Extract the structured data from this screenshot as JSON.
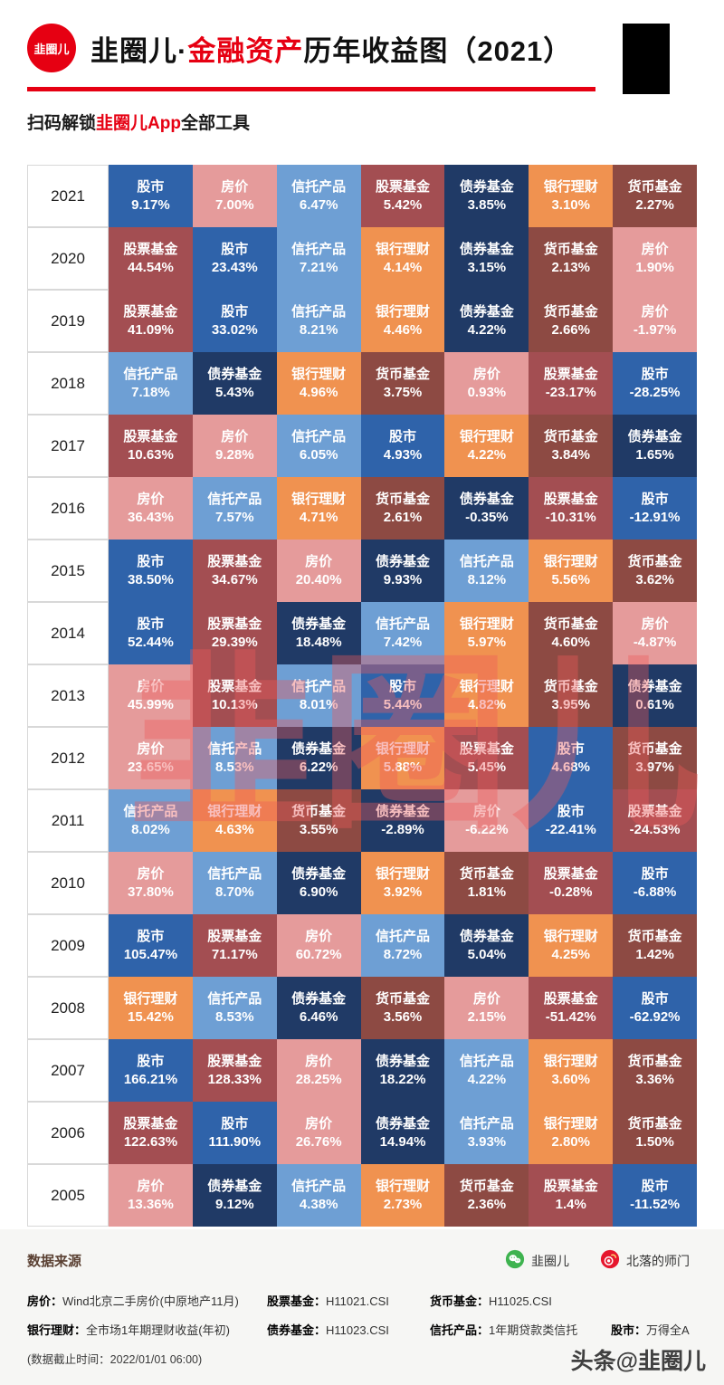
{
  "colors": {
    "accent": "#e60012",
    "watermark_red": "#ee5a5a"
  },
  "header": {
    "logo_text": "韭圈儿",
    "title_prefix": "韭圈儿·",
    "title_highlight": "金融资产",
    "title_suffix": "历年收益图（2021）",
    "subtitle_prefix": "扫码解锁",
    "subtitle_highlight": "韭圈儿App",
    "subtitle_suffix": "全部工具"
  },
  "watermark": {
    "text": "韭圈儿"
  },
  "chart_data": {
    "type": "table",
    "title": "韭圈儿·金融资产历年收益图（2021）",
    "assets": [
      "股市",
      "房价",
      "信托产品",
      "股票基金",
      "债券基金",
      "银行理财",
      "货币基金"
    ],
    "asset_colors": {
      "股市": "#2f63aa",
      "房价": "#e59b9b",
      "信托产品": "#6e9fd4",
      "股票基金": "#a34e52",
      "债券基金": "#203a66",
      "银行理财": "#f09250",
      "货币基金": "#8d4a43"
    },
    "rows": [
      {
        "year": "2021",
        "cells": [
          {
            "name": "股市",
            "value": "9.17%"
          },
          {
            "name": "房价",
            "value": "7.00%"
          },
          {
            "name": "信托产品",
            "value": "6.47%"
          },
          {
            "name": "股票基金",
            "value": "5.42%"
          },
          {
            "name": "债券基金",
            "value": "3.85%"
          },
          {
            "name": "银行理财",
            "value": "3.10%"
          },
          {
            "name": "货币基金",
            "value": "2.27%"
          }
        ]
      },
      {
        "year": "2020",
        "cells": [
          {
            "name": "股票基金",
            "value": "44.54%"
          },
          {
            "name": "股市",
            "value": "23.43%"
          },
          {
            "name": "信托产品",
            "value": "7.21%"
          },
          {
            "name": "银行理财",
            "value": "4.14%"
          },
          {
            "name": "债券基金",
            "value": "3.15%"
          },
          {
            "name": "货币基金",
            "value": "2.13%"
          },
          {
            "name": "房价",
            "value": "1.90%"
          }
        ]
      },
      {
        "year": "2019",
        "cells": [
          {
            "name": "股票基金",
            "value": "41.09%"
          },
          {
            "name": "股市",
            "value": "33.02%"
          },
          {
            "name": "信托产品",
            "value": "8.21%"
          },
          {
            "name": "银行理财",
            "value": "4.46%"
          },
          {
            "name": "债券基金",
            "value": "4.22%"
          },
          {
            "name": "货币基金",
            "value": "2.66%"
          },
          {
            "name": "房价",
            "value": "-1.97%"
          }
        ]
      },
      {
        "year": "2018",
        "cells": [
          {
            "name": "信托产品",
            "value": "7.18%"
          },
          {
            "name": "债券基金",
            "value": "5.43%"
          },
          {
            "name": "银行理财",
            "value": "4.96%"
          },
          {
            "name": "货币基金",
            "value": "3.75%"
          },
          {
            "name": "房价",
            "value": "0.93%"
          },
          {
            "name": "股票基金",
            "value": "-23.17%"
          },
          {
            "name": "股市",
            "value": "-28.25%"
          }
        ]
      },
      {
        "year": "2017",
        "cells": [
          {
            "name": "股票基金",
            "value": "10.63%"
          },
          {
            "name": "房价",
            "value": "9.28%"
          },
          {
            "name": "信托产品",
            "value": "6.05%"
          },
          {
            "name": "股市",
            "value": "4.93%"
          },
          {
            "name": "银行理财",
            "value": "4.22%"
          },
          {
            "name": "货币基金",
            "value": "3.84%"
          },
          {
            "name": "债券基金",
            "value": "1.65%"
          }
        ]
      },
      {
        "year": "2016",
        "cells": [
          {
            "name": "房价",
            "value": "36.43%"
          },
          {
            "name": "信托产品",
            "value": "7.57%"
          },
          {
            "name": "银行理财",
            "value": "4.71%"
          },
          {
            "name": "货币基金",
            "value": "2.61%"
          },
          {
            "name": "债券基金",
            "value": "-0.35%"
          },
          {
            "name": "股票基金",
            "value": "-10.31%"
          },
          {
            "name": "股市",
            "value": "-12.91%"
          }
        ]
      },
      {
        "year": "2015",
        "cells": [
          {
            "name": "股市",
            "value": "38.50%"
          },
          {
            "name": "股票基金",
            "value": "34.67%"
          },
          {
            "name": "房价",
            "value": "20.40%"
          },
          {
            "name": "债券基金",
            "value": "9.93%"
          },
          {
            "name": "信托产品",
            "value": "8.12%"
          },
          {
            "name": "银行理财",
            "value": "5.56%"
          },
          {
            "name": "货币基金",
            "value": "3.62%"
          }
        ]
      },
      {
        "year": "2014",
        "cells": [
          {
            "name": "股市",
            "value": "52.44%"
          },
          {
            "name": "股票基金",
            "value": "29.39%"
          },
          {
            "name": "债券基金",
            "value": "18.48%"
          },
          {
            "name": "信托产品",
            "value": "7.42%"
          },
          {
            "name": "银行理财",
            "value": "5.97%"
          },
          {
            "name": "货币基金",
            "value": "4.60%"
          },
          {
            "name": "房价",
            "value": "-4.87%"
          }
        ]
      },
      {
        "year": "2013",
        "cells": [
          {
            "name": "房价",
            "value": "45.99%"
          },
          {
            "name": "股票基金",
            "value": "10.13%"
          },
          {
            "name": "信托产品",
            "value": "8.01%"
          },
          {
            "name": "股市",
            "value": "5.44%"
          },
          {
            "name": "银行理财",
            "value": "4.82%"
          },
          {
            "name": "货币基金",
            "value": "3.95%"
          },
          {
            "name": "债券基金",
            "value": "0.61%"
          }
        ]
      },
      {
        "year": "2012",
        "cells": [
          {
            "name": "房价",
            "value": "23.65%"
          },
          {
            "name": "信托产品",
            "value": "8.53%"
          },
          {
            "name": "债券基金",
            "value": "6.22%"
          },
          {
            "name": "银行理财",
            "value": "5.88%"
          },
          {
            "name": "股票基金",
            "value": "5.45%"
          },
          {
            "name": "股市",
            "value": "4.68%"
          },
          {
            "name": "货币基金",
            "value": "3.97%"
          }
        ]
      },
      {
        "year": "2011",
        "cells": [
          {
            "name": "信托产品",
            "value": "8.02%"
          },
          {
            "name": "银行理财",
            "value": "4.63%"
          },
          {
            "name": "货币基金",
            "value": "3.55%"
          },
          {
            "name": "债券基金",
            "value": "-2.89%"
          },
          {
            "name": "房价",
            "value": "-6.22%"
          },
          {
            "name": "股市",
            "value": "-22.41%"
          },
          {
            "name": "股票基金",
            "value": "-24.53%"
          }
        ]
      },
      {
        "year": "2010",
        "cells": [
          {
            "name": "房价",
            "value": "37.80%"
          },
          {
            "name": "信托产品",
            "value": "8.70%"
          },
          {
            "name": "债券基金",
            "value": "6.90%"
          },
          {
            "name": "银行理财",
            "value": "3.92%"
          },
          {
            "name": "货币基金",
            "value": "1.81%"
          },
          {
            "name": "股票基金",
            "value": "-0.28%"
          },
          {
            "name": "股市",
            "value": "-6.88%"
          }
        ]
      },
      {
        "year": "2009",
        "cells": [
          {
            "name": "股市",
            "value": "105.47%"
          },
          {
            "name": "股票基金",
            "value": "71.17%"
          },
          {
            "name": "房价",
            "value": "60.72%"
          },
          {
            "name": "信托产品",
            "value": "8.72%"
          },
          {
            "name": "债券基金",
            "value": "5.04%"
          },
          {
            "name": "银行理财",
            "value": "4.25%"
          },
          {
            "name": "货币基金",
            "value": "1.42%"
          }
        ]
      },
      {
        "year": "2008",
        "cells": [
          {
            "name": "银行理财",
            "value": "15.42%"
          },
          {
            "name": "信托产品",
            "value": "8.53%"
          },
          {
            "name": "债券基金",
            "value": "6.46%"
          },
          {
            "name": "货币基金",
            "value": "3.56%"
          },
          {
            "name": "房价",
            "value": "2.15%"
          },
          {
            "name": "股票基金",
            "value": "-51.42%"
          },
          {
            "name": "股市",
            "value": "-62.92%"
          }
        ]
      },
      {
        "year": "2007",
        "cells": [
          {
            "name": "股市",
            "value": "166.21%"
          },
          {
            "name": "股票基金",
            "value": "128.33%"
          },
          {
            "name": "房价",
            "value": "28.25%"
          },
          {
            "name": "债券基金",
            "value": "18.22%"
          },
          {
            "name": "信托产品",
            "value": "4.22%"
          },
          {
            "name": "银行理财",
            "value": "3.60%"
          },
          {
            "name": "货币基金",
            "value": "3.36%"
          }
        ]
      },
      {
        "year": "2006",
        "cells": [
          {
            "name": "股票基金",
            "value": "122.63%"
          },
          {
            "name": "股市",
            "value": "111.90%"
          },
          {
            "name": "房价",
            "value": "26.76%"
          },
          {
            "name": "债券基金",
            "value": "14.94%"
          },
          {
            "name": "信托产品",
            "value": "3.93%"
          },
          {
            "name": "银行理财",
            "value": "2.80%"
          },
          {
            "name": "货币基金",
            "value": "1.50%"
          }
        ]
      },
      {
        "year": "2005",
        "cells": [
          {
            "name": "房价",
            "value": "13.36%"
          },
          {
            "name": "债券基金",
            "value": "9.12%"
          },
          {
            "name": "信托产品",
            "value": "4.38%"
          },
          {
            "name": "银行理财",
            "value": "2.73%"
          },
          {
            "name": "货币基金",
            "value": "2.36%"
          },
          {
            "name": "股票基金",
            "value": "1.4%"
          },
          {
            "name": "股市",
            "value": "-11.52%"
          }
        ]
      }
    ]
  },
  "footer": {
    "source_title": "数据来源",
    "social": [
      {
        "name": "韭圈儿"
      },
      {
        "name": "北落的师门"
      }
    ],
    "items": [
      {
        "label": "房价：",
        "value": "Wind北京二手房价(中原地产11月)"
      },
      {
        "label": "股票基金：",
        "value": "H11021.CSI"
      },
      {
        "label": "货币基金：",
        "value": "H11025.CSI"
      },
      {
        "label": "银行理财：",
        "value": "全市场1年期理财收益(年初)"
      },
      {
        "label": "债券基金：",
        "value": "H11023.CSI"
      },
      {
        "label": "信托产品：",
        "value": "1年期贷款类信托"
      },
      {
        "label": "股市：",
        "value": "万得全A"
      }
    ],
    "note": "(数据截止时间：2022/01/01 06:00)",
    "credit": "头条@韭圈儿"
  }
}
